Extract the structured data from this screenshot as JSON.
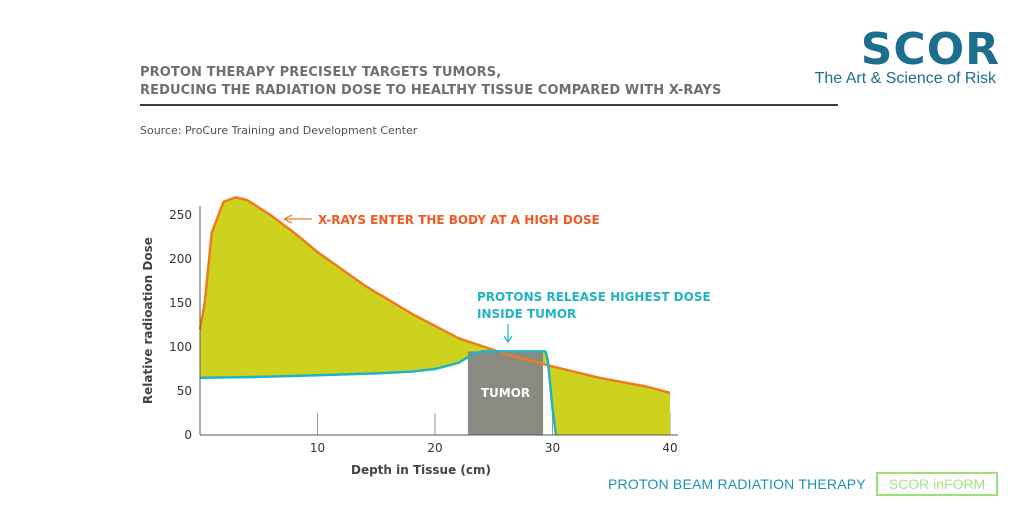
{
  "header": {
    "title_line1": "PROTON THERAPY PRECISELY TARGETS TUMORS,",
    "title_line2": "REDUCING THE RADIATION DOSE TO HEALTHY TISSUE COMPARED WITH X-RAYS",
    "source": "Source: ProCure Training and Development Center"
  },
  "logo": {
    "word": "SCOR",
    "tagline": "The Art & Science of Risk",
    "color": "#1b6e8e"
  },
  "footer": {
    "label": "PROTON BEAM RADIATION THERAPY",
    "badge": "SCOR inFORM"
  },
  "colors": {
    "xray_line": "#f07a1e",
    "fill": "#cdd21e",
    "proton_line": "#21b3c4",
    "tumor": "#8b8a80",
    "axis": "#555555",
    "grid": "#9a9a9a",
    "annotation_text_orange": "#f05a22",
    "annotation_text_teal": "#21b3c4"
  },
  "chart_data": {
    "type": "area",
    "xlabel": "Depth in Tissue (cm)",
    "ylabel": "Relative radioation Dose",
    "xlim": [
      0,
      40
    ],
    "ylim": [
      0,
      260
    ],
    "x_ticks": [
      10,
      20,
      30,
      40
    ],
    "y_ticks": [
      0,
      50,
      100,
      150,
      200,
      250
    ],
    "grid": "vertical",
    "series": [
      {
        "key": "xray",
        "x": [
          0,
          0.4,
          1,
          2,
          3,
          4,
          6,
          8,
          10,
          14,
          18,
          22,
          26,
          30,
          34,
          38,
          40
        ],
        "values": [
          120,
          150,
          230,
          265,
          270,
          267,
          250,
          230,
          208,
          170,
          138,
          110,
          92,
          78,
          65,
          55,
          48
        ]
      },
      {
        "key": "proton",
        "x": [
          0,
          5,
          10,
          15,
          18,
          20,
          22,
          23,
          24,
          25,
          29.4,
          29.6,
          30,
          30.3
        ],
        "values": [
          65,
          66,
          68,
          70,
          72,
          75,
          82,
          90,
          95,
          95,
          95,
          85,
          30,
          0
        ]
      }
    ],
    "tumor": {
      "label": "TUMOR",
      "x_start": 22.8,
      "x_end": 29.2,
      "top": 95
    },
    "annotations": [
      {
        "key": "xray_note",
        "text": "X-RAYS ENTER THE BODY AT A HIGH DOSE"
      },
      {
        "key": "proton_note_1",
        "text": "PROTONS RELEASE HIGHEST DOSE"
      },
      {
        "key": "proton_note_2",
        "text": "INSIDE TUMOR"
      }
    ]
  }
}
